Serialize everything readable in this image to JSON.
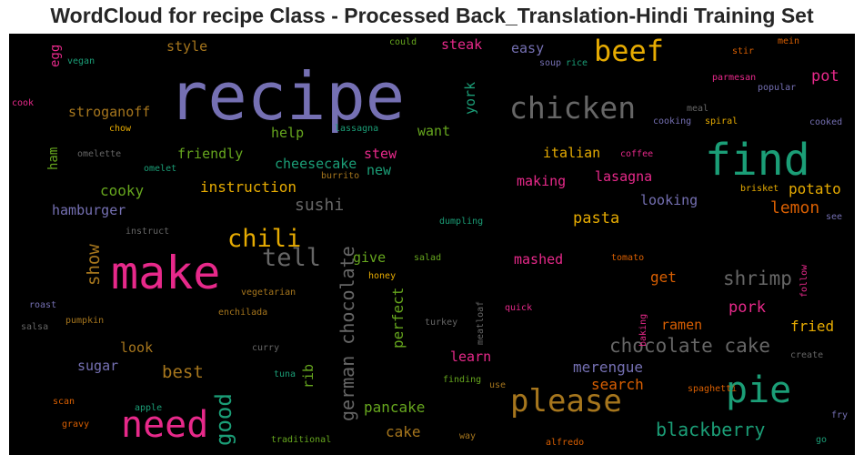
{
  "chart_data": {
    "type": "wordcloud",
    "title": "WordCloud for recipe Class - Processed Back_Translation-Hindi Training Set",
    "background": "#000000",
    "palette": [
      "#1b9e77",
      "#d95f02",
      "#7570b3",
      "#e7298a",
      "#66a61e",
      "#e6ab02",
      "#a6761d",
      "#666666"
    ],
    "words": [
      {
        "text": "recipe",
        "color": "#7570b3"
      },
      {
        "text": "make",
        "color": "#e7298a"
      },
      {
        "text": "find",
        "color": "#1b9e77"
      },
      {
        "text": "chicken",
        "color": "#666666"
      },
      {
        "text": "beef",
        "color": "#e6ab02"
      },
      {
        "text": "need",
        "color": "#e7298a"
      },
      {
        "text": "pie",
        "color": "#1b9e77"
      },
      {
        "text": "please",
        "color": "#a6761d"
      },
      {
        "text": "chili",
        "color": "#e6ab02"
      },
      {
        "text": "tell",
        "color": "#666666"
      },
      {
        "text": "good",
        "color": "#1b9e77"
      },
      {
        "text": "german chocolate",
        "color": "#666666"
      },
      {
        "text": "chocolate cake",
        "color": "#666666"
      },
      {
        "text": "shrimp",
        "color": "#666666"
      },
      {
        "text": "blackberry",
        "color": "#1b9e77"
      },
      {
        "text": "show",
        "color": "#a6761d"
      },
      {
        "text": "lemon",
        "color": "#d95f02"
      },
      {
        "text": "sushi",
        "color": "#666666"
      },
      {
        "text": "pasta",
        "color": "#e6ab02"
      },
      {
        "text": "pot",
        "color": "#e7298a"
      },
      {
        "text": "potato",
        "color": "#e6ab02"
      },
      {
        "text": "fried",
        "color": "#e6ab02"
      },
      {
        "text": "pork",
        "color": "#e7298a"
      },
      {
        "text": "best",
        "color": "#a6761d"
      },
      {
        "text": "pancake",
        "color": "#66a61e"
      },
      {
        "text": "cake",
        "color": "#a6761d"
      },
      {
        "text": "merengue",
        "color": "#7570b3"
      },
      {
        "text": "search",
        "color": "#d95f02"
      },
      {
        "text": "perfect",
        "color": "#66a61e"
      },
      {
        "text": "rib",
        "color": "#66a61e"
      },
      {
        "text": "instruction",
        "color": "#e6ab02"
      },
      {
        "text": "friendly",
        "color": "#66a61e"
      },
      {
        "text": "cooky",
        "color": "#66a61e"
      },
      {
        "text": "hamburger",
        "color": "#7570b3"
      },
      {
        "text": "stroganoff",
        "color": "#a6761d"
      },
      {
        "text": "style",
        "color": "#a6761d"
      },
      {
        "text": "steak",
        "color": "#e7298a"
      },
      {
        "text": "easy",
        "color": "#7570b3"
      },
      {
        "text": "york",
        "color": "#1b9e77"
      },
      {
        "text": "want",
        "color": "#66a61e"
      },
      {
        "text": "help",
        "color": "#66a61e"
      },
      {
        "text": "cheesecake",
        "color": "#1b9e77"
      },
      {
        "text": "stew",
        "color": "#e7298a"
      },
      {
        "text": "new",
        "color": "#1b9e77"
      },
      {
        "text": "italian",
        "color": "#e6ab02"
      },
      {
        "text": "making",
        "color": "#e7298a"
      },
      {
        "text": "lasagna",
        "color": "#e7298a"
      },
      {
        "text": "looking",
        "color": "#7570b3"
      },
      {
        "text": "mashed",
        "color": "#e7298a"
      },
      {
        "text": "get",
        "color": "#d95f02"
      },
      {
        "text": "ramen",
        "color": "#d95f02"
      },
      {
        "text": "give",
        "color": "#66a61e"
      },
      {
        "text": "learn",
        "color": "#e7298a"
      },
      {
        "text": "sugar",
        "color": "#7570b3"
      },
      {
        "text": "look",
        "color": "#a6761d"
      },
      {
        "text": "ham",
        "color": "#66a61e"
      },
      {
        "text": "egg",
        "color": "#e7298a"
      },
      {
        "text": "vegan",
        "color": "#1b9e77"
      },
      {
        "text": "cook",
        "color": "#e7298a"
      },
      {
        "text": "chow",
        "color": "#e6ab02"
      },
      {
        "text": "omelette",
        "color": "#666666"
      },
      {
        "text": "omelet",
        "color": "#1b9e77"
      },
      {
        "text": "burrito",
        "color": "#a6761d"
      },
      {
        "text": "lassagna",
        "color": "#1b9e77"
      },
      {
        "text": "could",
        "color": "#66a61e"
      },
      {
        "text": "soup",
        "color": "#7570b3"
      },
      {
        "text": "rice",
        "color": "#1b9e77"
      },
      {
        "text": "meal",
        "color": "#666666"
      },
      {
        "text": "coffee",
        "color": "#e7298a"
      },
      {
        "text": "cooking",
        "color": "#7570b3"
      },
      {
        "text": "spiral",
        "color": "#e6ab02"
      },
      {
        "text": "parmesan",
        "color": "#e7298a"
      },
      {
        "text": "popular",
        "color": "#7570b3"
      },
      {
        "text": "stir",
        "color": "#d95f02"
      },
      {
        "text": "mein",
        "color": "#d95f02"
      },
      {
        "text": "cooked",
        "color": "#7570b3"
      },
      {
        "text": "brisket",
        "color": "#e6ab02"
      },
      {
        "text": "see",
        "color": "#7570b3"
      },
      {
        "text": "instruct",
        "color": "#666666"
      },
      {
        "text": "dumpling",
        "color": "#1b9e77"
      },
      {
        "text": "tomato",
        "color": "#d95f02"
      },
      {
        "text": "salad",
        "color": "#66a61e"
      },
      {
        "text": "honey",
        "color": "#e6ab02"
      },
      {
        "text": "vegetarian",
        "color": "#a6761d"
      },
      {
        "text": "enchilada",
        "color": "#a6761d"
      },
      {
        "text": "roast",
        "color": "#7570b3"
      },
      {
        "text": "salsa",
        "color": "#666666"
      },
      {
        "text": "pumpkin",
        "color": "#a6761d"
      },
      {
        "text": "curry",
        "color": "#666666"
      },
      {
        "text": "turkey",
        "color": "#666666"
      },
      {
        "text": "meatloaf",
        "color": "#666666"
      },
      {
        "text": "quick",
        "color": "#e7298a"
      },
      {
        "text": "baking",
        "color": "#e7298a"
      },
      {
        "text": "follow",
        "color": "#e7298a"
      },
      {
        "text": "create",
        "color": "#666666"
      },
      {
        "text": "tuna",
        "color": "#1b9e77"
      },
      {
        "text": "finding",
        "color": "#66a61e"
      },
      {
        "text": "use",
        "color": "#a6761d"
      },
      {
        "text": "spaghetti",
        "color": "#d95f02"
      },
      {
        "text": "scan",
        "color": "#d95f02"
      },
      {
        "text": "apple",
        "color": "#1b9e77"
      },
      {
        "text": "gravy",
        "color": "#d95f02"
      },
      {
        "text": "traditional",
        "color": "#66a61e"
      },
      {
        "text": "way",
        "color": "#a6761d"
      },
      {
        "text": "alfredo",
        "color": "#d95f02"
      },
      {
        "text": "fry",
        "color": "#7570b3"
      },
      {
        "text": "go",
        "color": "#1b9e77"
      }
    ]
  }
}
